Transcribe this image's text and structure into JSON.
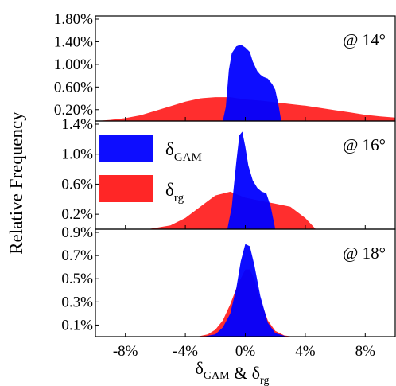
{
  "chart_data": {
    "type": "area",
    "ylabel": "Relative Frequency",
    "xlabel": {
      "parts": [
        {
          "text": "δ",
          "sub": "GAM"
        },
        {
          "text": " & δ",
          "sub": "rg"
        }
      ]
    },
    "xlim": [
      -10,
      10
    ],
    "x_ticks": [
      {
        "value": -8,
        "label": "-8%"
      },
      {
        "value": -4,
        "label": "-4%"
      },
      {
        "value": 0,
        "label": "0%"
      },
      {
        "value": 4,
        "label": "4%"
      },
      {
        "value": 8,
        "label": "8%"
      }
    ],
    "legend": {
      "placement": "top-left of middle panel",
      "entries": [
        {
          "series": "gam",
          "symbol": "δ",
          "sub": "GAM",
          "color": "#0000ff"
        },
        {
          "series": "rg",
          "symbol": "δ",
          "sub": "rg",
          "color": "#ff0000"
        }
      ]
    },
    "colors": {
      "gam": "#0000ff",
      "rg": "#ff0000"
    },
    "panels": [
      {
        "label": "@ 14°",
        "ylim": [
          0,
          1.8
        ],
        "y_ticks": [
          {
            "value": 0.2,
            "label": "0.20%"
          },
          {
            "value": 0.6,
            "label": "0.60%"
          },
          {
            "value": 1.0,
            "label": "1.00%"
          },
          {
            "value": 1.4,
            "label": "1.40%"
          },
          {
            "value": 1.8,
            "label": "1.80%"
          }
        ],
        "series": [
          {
            "key": "gam",
            "points": [
              [
                -1.5,
                0
              ],
              [
                -1.3,
                0.25
              ],
              [
                -1.1,
                0.9
              ],
              [
                -0.9,
                1.2
              ],
              [
                -0.6,
                1.32
              ],
              [
                -0.3,
                1.35
              ],
              [
                0.0,
                1.3
              ],
              [
                0.3,
                1.22
              ],
              [
                0.5,
                1.05
              ],
              [
                0.8,
                0.88
              ],
              [
                1.0,
                0.82
              ],
              [
                1.2,
                0.78
              ],
              [
                1.5,
                0.75
              ],
              [
                1.8,
                0.65
              ],
              [
                2.0,
                0.55
              ],
              [
                2.2,
                0.3
              ],
              [
                2.4,
                0.0
              ]
            ]
          },
          {
            "key": "rg",
            "points": [
              [
                -10,
                0.0
              ],
              [
                -9,
                0.02
              ],
              [
                -8,
                0.05
              ],
              [
                -7,
                0.1
              ],
              [
                -6,
                0.18
              ],
              [
                -5,
                0.26
              ],
              [
                -4,
                0.34
              ],
              [
                -3,
                0.4
              ],
              [
                -2,
                0.42
              ],
              [
                -1,
                0.42
              ],
              [
                0,
                0.38
              ],
              [
                1,
                0.36
              ],
              [
                2,
                0.33
              ],
              [
                3,
                0.3
              ],
              [
                4,
                0.27
              ],
              [
                5,
                0.23
              ],
              [
                6,
                0.19
              ],
              [
                7,
                0.15
              ],
              [
                8,
                0.11
              ],
              [
                9,
                0.08
              ],
              [
                10,
                0.06
              ]
            ]
          }
        ]
      },
      {
        "label": "@ 16°",
        "ylim": [
          0,
          1.4
        ],
        "y_ticks": [
          {
            "value": 0.2,
            "label": "0.2%"
          },
          {
            "value": 0.6,
            "label": "0.6%"
          },
          {
            "value": 1.0,
            "label": "1.0%"
          },
          {
            "value": 1.4,
            "label": "1.4%"
          }
        ],
        "series": [
          {
            "key": "gam",
            "points": [
              [
                -1.2,
                0
              ],
              [
                -0.9,
                0.3
              ],
              [
                -0.6,
                0.9
              ],
              [
                -0.4,
                1.25
              ],
              [
                -0.2,
                1.3
              ],
              [
                0.0,
                1.1
              ],
              [
                0.2,
                0.85
              ],
              [
                0.5,
                0.65
              ],
              [
                0.8,
                0.55
              ],
              [
                1.1,
                0.5
              ],
              [
                1.4,
                0.48
              ],
              [
                1.7,
                0.3
              ],
              [
                2.0,
                0.0
              ]
            ]
          },
          {
            "key": "rg",
            "points": [
              [
                -6.5,
                0
              ],
              [
                -5,
                0.05
              ],
              [
                -4,
                0.15
              ],
              [
                -3,
                0.3
              ],
              [
                -2,
                0.45
              ],
              [
                -1,
                0.5
              ],
              [
                0,
                0.42
              ],
              [
                1,
                0.38
              ],
              [
                2,
                0.34
              ],
              [
                3,
                0.3
              ],
              [
                4,
                0.15
              ],
              [
                4.7,
                0.0
              ]
            ]
          }
        ]
      },
      {
        "label": "@ 18°",
        "ylim": [
          0,
          0.9
        ],
        "y_ticks": [
          {
            "value": 0.1,
            "label": "0.1%"
          },
          {
            "value": 0.3,
            "label": "0.3%"
          },
          {
            "value": 0.5,
            "label": "0.5%"
          },
          {
            "value": 0.7,
            "label": "0.7%"
          },
          {
            "value": 0.9,
            "label": "0.9%"
          }
        ],
        "series": [
          {
            "key": "gam",
            "points": [
              [
                -2.8,
                0
              ],
              [
                -2,
                0.02
              ],
              [
                -1.5,
                0.08
              ],
              [
                -1.0,
                0.2
              ],
              [
                -0.6,
                0.42
              ],
              [
                -0.3,
                0.65
              ],
              [
                0.0,
                0.8
              ],
              [
                0.3,
                0.78
              ],
              [
                0.6,
                0.62
              ],
              [
                1.0,
                0.35
              ],
              [
                1.5,
                0.12
              ],
              [
                2,
                0.03
              ],
              [
                2.8,
                0.0
              ]
            ]
          },
          {
            "key": "rg",
            "points": [
              [
                -3.2,
                0
              ],
              [
                -2.5,
                0.02
              ],
              [
                -2,
                0.06
              ],
              [
                -1.5,
                0.14
              ],
              [
                -1.0,
                0.28
              ],
              [
                -0.5,
                0.45
              ],
              [
                0.0,
                0.58
              ],
              [
                0.3,
                0.58
              ],
              [
                0.6,
                0.5
              ],
              [
                1.0,
                0.32
              ],
              [
                1.5,
                0.14
              ],
              [
                2,
                0.05
              ],
              [
                2.6,
                0.01
              ],
              [
                3.2,
                0.0
              ]
            ]
          }
        ]
      }
    ]
  }
}
